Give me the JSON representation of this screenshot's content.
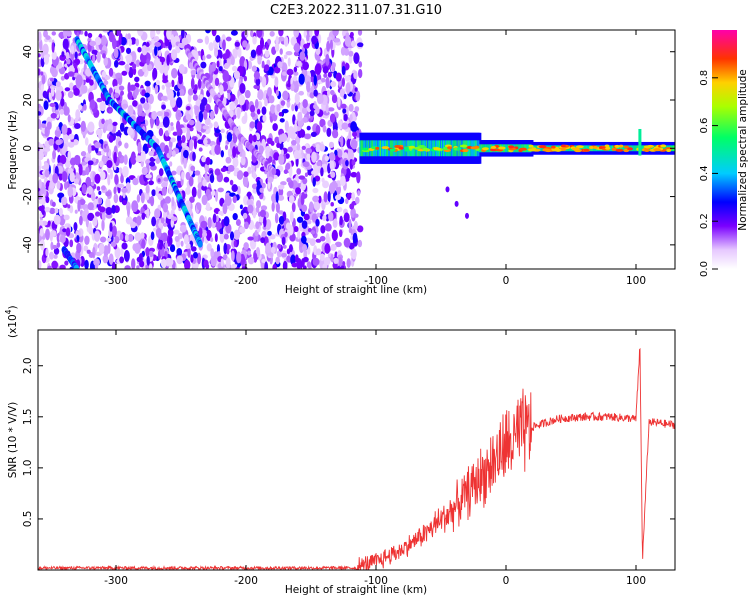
{
  "title": "C2E3.2022.311.07.31.G10",
  "chart_data": [
    {
      "type": "heatmap",
      "xlabel": "Height of straight line (km)",
      "ylabel": "Frequency (Hz)",
      "xlim": [
        -360,
        130
      ],
      "ylim": [
        -50,
        49
      ],
      "xticks": [
        -300,
        -200,
        -100,
        0,
        100
      ],
      "yticks": [
        -40,
        -20,
        0,
        20,
        40
      ],
      "colorbar": {
        "label": "Normalized spectral amplitude",
        "ticks": [
          0.0,
          0.2,
          0.4,
          0.6,
          0.8
        ],
        "range": [
          0.0,
          1.0
        ]
      },
      "features": [
        {
          "kind": "noise",
          "x": [
            -360,
            -112
          ],
          "y": [
            -50,
            49
          ]
        },
        {
          "kind": "line",
          "points": [
            [
              -330,
              45
            ],
            [
              -305,
              20
            ],
            [
              -268,
              0
            ],
            [
              -245,
              -28
            ],
            [
              -235,
              -40
            ]
          ],
          "amplitude": 0.35
        },
        {
          "kind": "line",
          "points": [
            [
              -245,
              40
            ],
            [
              -205,
              5
            ],
            [
              -178,
              -10
            ]
          ],
          "amplitude": 0.12
        },
        {
          "kind": "line",
          "points": [
            [
              -340,
              -42
            ],
            [
              -330,
              -50
            ]
          ],
          "amplitude": 0.3
        },
        {
          "kind": "carrier",
          "x": [
            -112,
            130
          ],
          "y": 0,
          "amplitude": 0.85
        },
        {
          "kind": "spike",
          "x": 103,
          "y": [
            -3,
            8
          ],
          "amplitude": 0.5
        }
      ]
    },
    {
      "type": "line",
      "xlabel": "Height of straight line (km)",
      "ylabel": "SNR (10 * V/V)",
      "y_scale_label": "(x10",
      "y_scale_exp": "4",
      "y_scale_close": ")",
      "xlim": [
        -360,
        130
      ],
      "ylim": [
        0.0,
        2.35
      ],
      "xticks": [
        -300,
        -200,
        -100,
        0,
        100
      ],
      "yticks": [
        0.5,
        1.0,
        1.5,
        2.0
      ],
      "ytick_labels": [
        "0.5",
        "1.0",
        "1.5",
        "2.0"
      ],
      "series": [
        {
          "color": "#ee3333",
          "x": [
            -360,
            -300,
            -200,
            -115,
            -100,
            -80,
            -60,
            -40,
            -20,
            0,
            20,
            40,
            60,
            80,
            100,
            103,
            105,
            110,
            130
          ],
          "y": [
            0.02,
            0.02,
            0.02,
            0.02,
            0.08,
            0.2,
            0.38,
            0.6,
            0.9,
            1.2,
            1.4,
            1.48,
            1.5,
            1.5,
            1.48,
            2.2,
            0.1,
            1.45,
            1.42
          ]
        }
      ]
    }
  ]
}
